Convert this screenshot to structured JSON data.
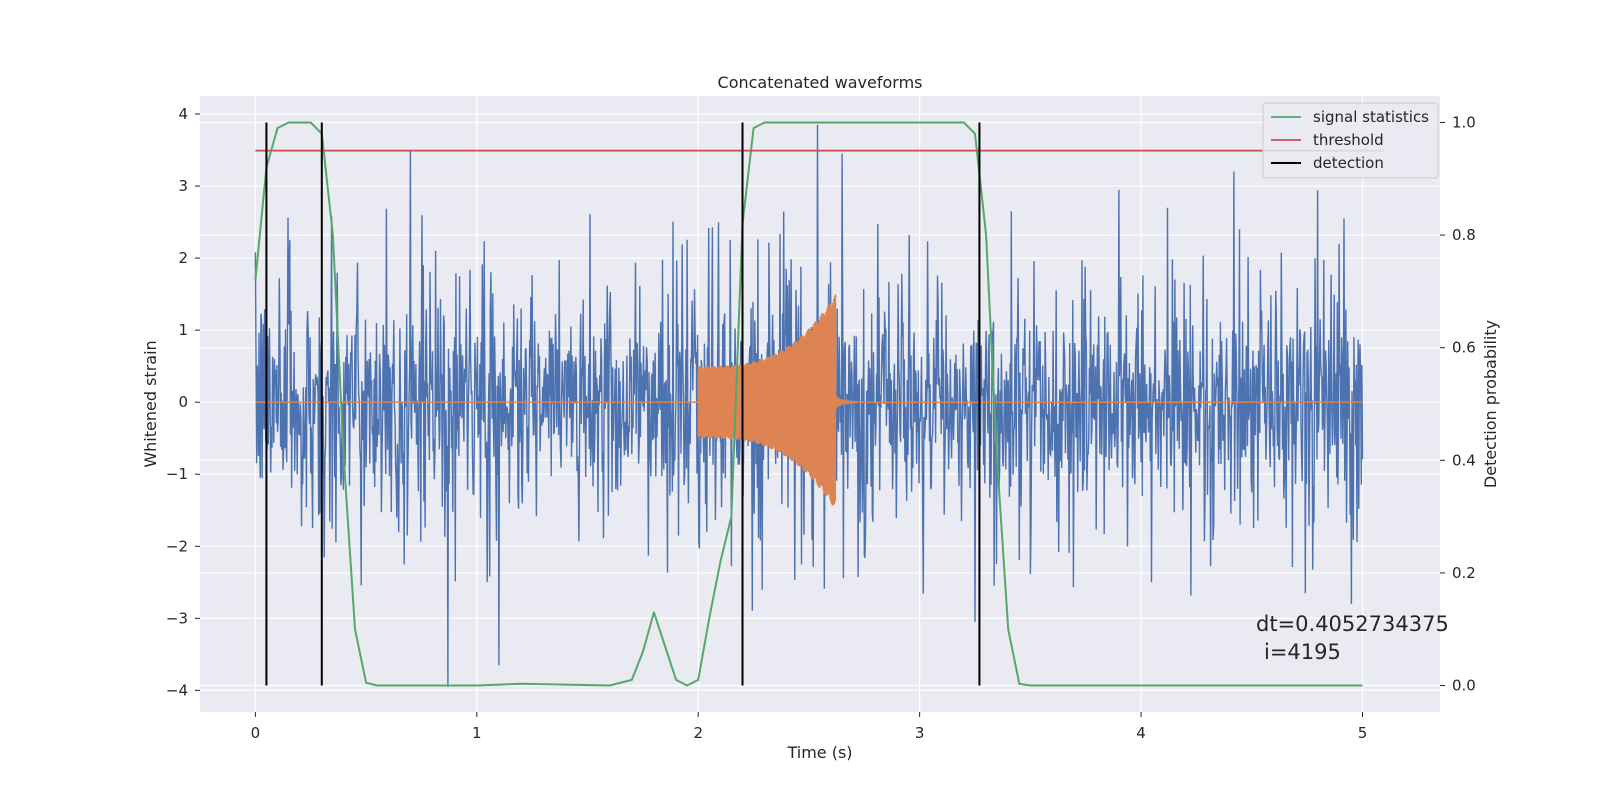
{
  "chart_data": {
    "type": "line",
    "title": "Concatenated waveforms",
    "xlabel": "Time (s)",
    "ylabel": "Whitened strain",
    "ylabel_right": "Detection probability",
    "xlim": [
      -0.25,
      5.35
    ],
    "ylim": [
      -4.3,
      4.25
    ],
    "ylim_right": [
      -0.047,
      1.047
    ],
    "x_ticks": [
      0,
      1,
      2,
      3,
      4,
      5
    ],
    "y_ticks": [
      -4,
      -3,
      -2,
      -1,
      0,
      1,
      2,
      3,
      4
    ],
    "y_ticks_right": [
      0.0,
      0.2,
      0.4,
      0.6,
      0.8,
      1.0
    ],
    "x_tick_labels": [
      "0",
      "1",
      "2",
      "3",
      "4",
      "5"
    ],
    "y_tick_labels": [
      "−4",
      "−3",
      "−2",
      "−1",
      "0",
      "1",
      "2",
      "3",
      "4"
    ],
    "y_tick_labels_right": [
      "0.0",
      "0.2",
      "0.4",
      "0.6",
      "0.8",
      "1.0"
    ],
    "grid": true,
    "legend_position": "top-right",
    "colors": {
      "background": "#eaeaf2",
      "noise": "#4c72b0",
      "waveform": "#dd8452",
      "signal_statistics": "#55a868",
      "threshold": "#c44e52",
      "detection": "#000000"
    },
    "series": [
      {
        "name": "",
        "axis": "left",
        "description_free": true,
        "x_range": [
          0,
          5
        ],
        "amplitude_envelope": 0.75,
        "peaks": [
          [
            0.7,
            3.5
          ],
          [
            0.87,
            -3.95
          ],
          [
            1.1,
            -3.65
          ],
          [
            2.54,
            3.85
          ],
          [
            2.65,
            3.45
          ],
          [
            3.25,
            -3.05
          ],
          [
            3.9,
            2.95
          ],
          [
            4.12,
            2.7
          ],
          [
            4.42,
            3.2
          ],
          [
            4.95,
            -2.8
          ]
        ]
      },
      {
        "name": "",
        "axis": "left",
        "x_start": 2.0,
        "x_end": 2.62,
        "amp_start": 0.5,
        "amp_end": 1.5
      },
      {
        "name": "signal statistics",
        "axis": "right",
        "x": [
          0,
          0.05,
          0.1,
          0.15,
          0.2,
          0.25,
          0.3,
          0.35,
          0.4,
          0.45,
          0.5,
          0.55,
          0.6,
          1.0,
          1.2,
          1.6,
          1.7,
          1.75,
          1.8,
          1.85,
          1.9,
          1.95,
          2.0,
          2.05,
          2.1,
          2.15,
          2.2,
          2.25,
          2.3,
          2.4,
          3.2,
          3.25,
          3.3,
          3.35,
          3.4,
          3.45,
          3.5,
          4.0,
          5.0
        ],
        "y": [
          0.72,
          0.92,
          0.99,
          1.0,
          1.0,
          1.0,
          0.98,
          0.8,
          0.4,
          0.1,
          0.005,
          0.0,
          0.0,
          0.0,
          0.003,
          0.0,
          0.01,
          0.06,
          0.13,
          0.07,
          0.01,
          0.0,
          0.01,
          0.12,
          0.22,
          0.3,
          0.82,
          0.99,
          1.0,
          1.0,
          1.0,
          0.98,
          0.8,
          0.4,
          0.1,
          0.003,
          0.0,
          0.0,
          0.0
        ]
      },
      {
        "name": "threshold",
        "axis": "right",
        "x": [
          0,
          5.1
        ],
        "y": [
          0.95,
          0.95
        ]
      },
      {
        "name": "detection",
        "axis": "right",
        "x": [
          0.05,
          0.3,
          2.2,
          3.27
        ],
        "y_range": [
          0,
          1
        ]
      }
    ],
    "annotations": [
      "dt=0.4052734375",
      "i=4195"
    ]
  }
}
